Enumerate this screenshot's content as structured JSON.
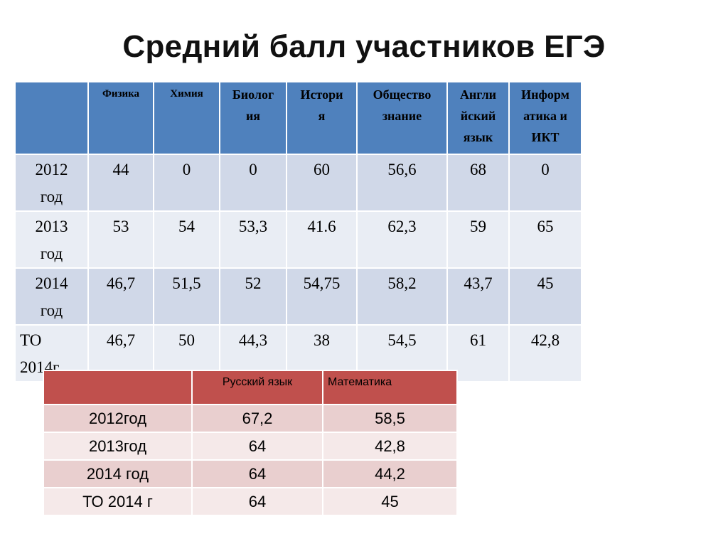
{
  "title": "Средний балл участников ЕГЭ",
  "table1": {
    "columns": [
      {
        "label": "Физика",
        "style": "small"
      },
      {
        "label": "Химия",
        "style": "small"
      },
      {
        "label": "Биология",
        "display": [
          "Биолог",
          "ия"
        ],
        "style": "big"
      },
      {
        "label": "История",
        "display": [
          "Истори",
          "я"
        ],
        "style": "big"
      },
      {
        "label": "Обществознание",
        "display": [
          "Общество",
          "знание"
        ],
        "style": "big"
      },
      {
        "label": "Английский язык",
        "display": [
          "Англи",
          "йский",
          "язык"
        ],
        "style": "big"
      },
      {
        "label": "Информатика и ИКТ",
        "display": [
          "Информ",
          "атика и",
          "ИКТ"
        ],
        "style": "big"
      }
    ],
    "rows": [
      {
        "label": [
          "2012",
          "год"
        ],
        "values": [
          "44",
          "0",
          "0",
          "60",
          "56,6",
          "68",
          "0"
        ]
      },
      {
        "label": [
          "2013",
          "год"
        ],
        "values": [
          "53",
          "54",
          "53,3",
          "41.6",
          "62,3",
          "59",
          "65"
        ]
      },
      {
        "label": [
          "2014",
          "год"
        ],
        "values": [
          "46,7",
          "51,5",
          "52",
          "54,75",
          "58,2",
          "43,7",
          "45"
        ]
      },
      {
        "label": [
          "ТО",
          "2014г"
        ],
        "values": [
          "46,7",
          "50",
          "44,3",
          "38",
          "54,5",
          "61",
          "42,8"
        ]
      }
    ]
  },
  "table2": {
    "columns": [
      "Русский язык",
      "Математика"
    ],
    "rows": [
      {
        "label": "2012год",
        "values": [
          "67,2",
          "58,5"
        ]
      },
      {
        "label": "2013год",
        "values": [
          "64",
          "42,8"
        ]
      },
      {
        "label": "2014 год",
        "values": [
          "64",
          "44,2"
        ]
      },
      {
        "label": "ТО 2014 г",
        "values": [
          "64",
          "45"
        ]
      }
    ]
  },
  "colors": {
    "table1_header": "#4f81bd",
    "table1_row_dark": "#d0d8e8",
    "table1_row_light": "#e9edf4",
    "table2_header": "#c0504d",
    "table2_row_dark": "#e9cfcf",
    "table2_row_light": "#f5e9e9"
  }
}
